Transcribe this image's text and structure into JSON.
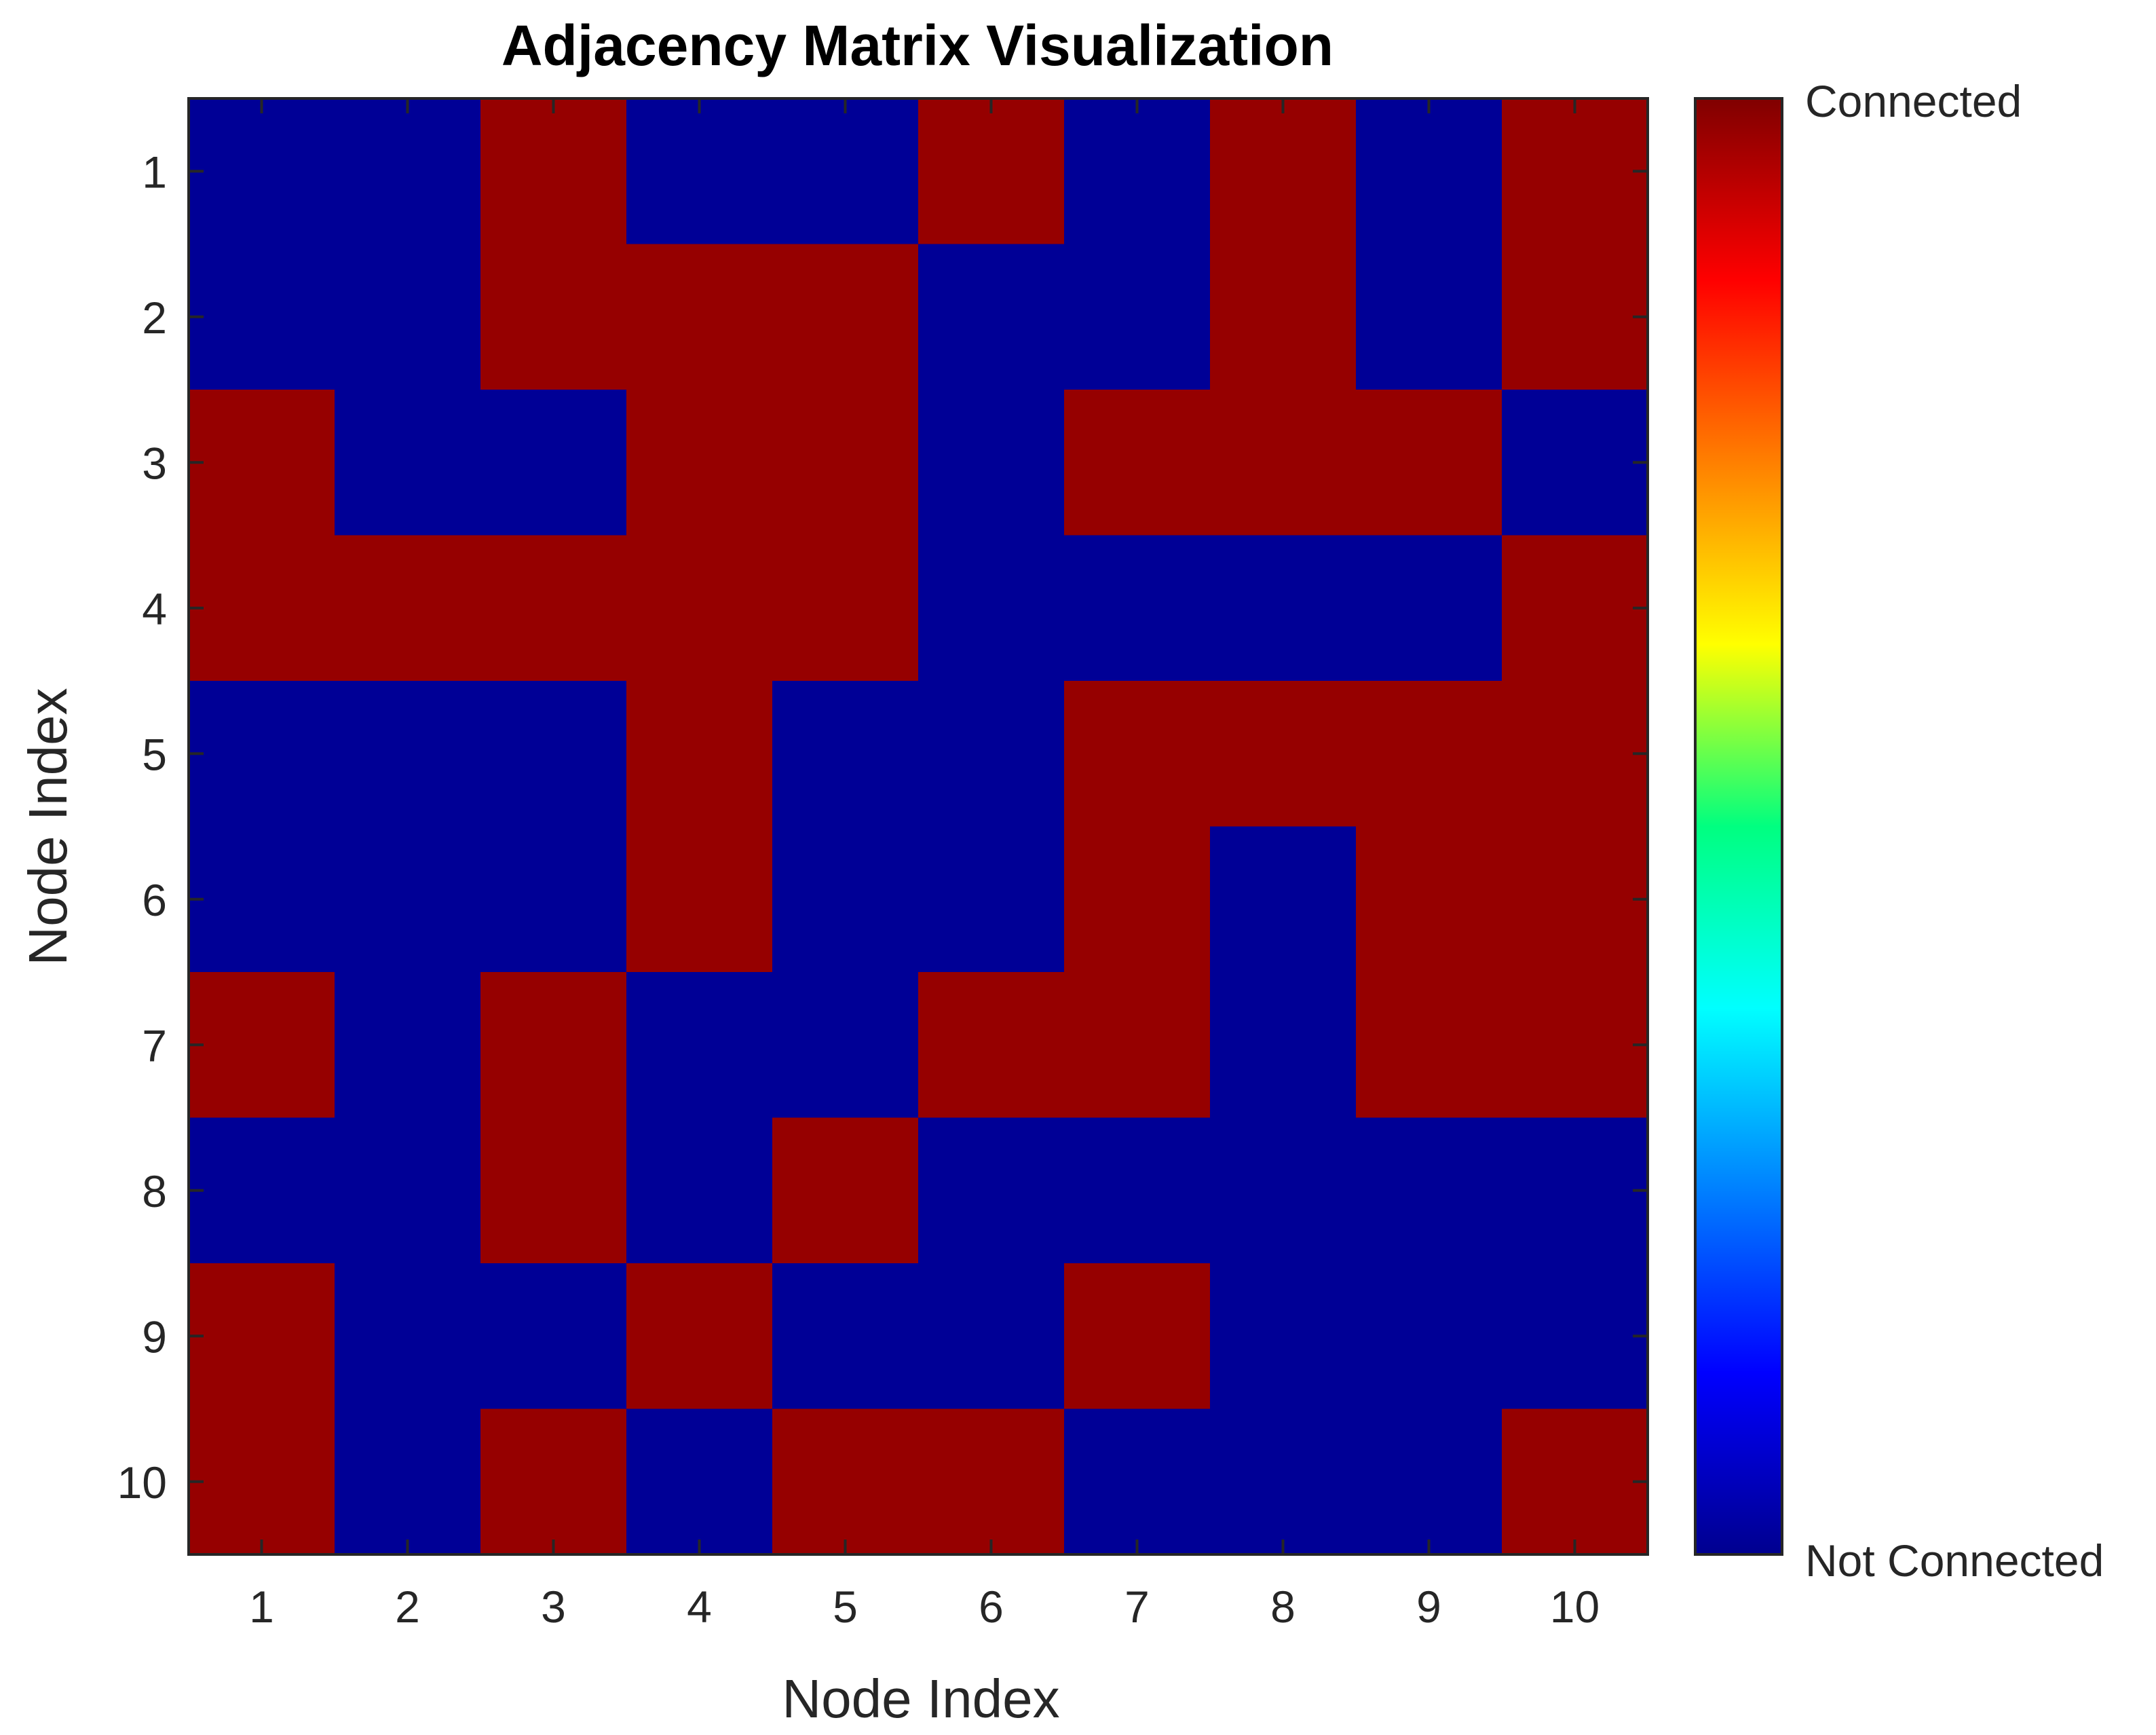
{
  "chart_data": {
    "type": "heatmap",
    "title": "Adjacency Matrix Visualization",
    "xlabel": "Node Index",
    "ylabel": "Node Index",
    "x_ticks": [
      "1",
      "2",
      "3",
      "4",
      "5",
      "6",
      "7",
      "8",
      "9",
      "10"
    ],
    "y_ticks": [
      "1",
      "2",
      "3",
      "4",
      "5",
      "6",
      "7",
      "8",
      "9",
      "10"
    ],
    "matrix": [
      [
        0,
        0,
        1,
        0,
        0,
        1,
        0,
        1,
        0,
        1
      ],
      [
        0,
        0,
        1,
        1,
        1,
        0,
        0,
        1,
        0,
        1
      ],
      [
        1,
        0,
        0,
        1,
        1,
        0,
        1,
        1,
        1,
        0
      ],
      [
        1,
        1,
        1,
        1,
        1,
        0,
        0,
        0,
        0,
        1
      ],
      [
        0,
        0,
        0,
        1,
        0,
        0,
        1,
        1,
        1,
        1
      ],
      [
        0,
        0,
        0,
        1,
        0,
        0,
        1,
        0,
        1,
        1
      ],
      [
        1,
        0,
        1,
        0,
        0,
        1,
        1,
        0,
        1,
        1
      ],
      [
        0,
        0,
        1,
        0,
        1,
        0,
        0,
        0,
        0,
        0
      ],
      [
        1,
        0,
        0,
        1,
        0,
        0,
        1,
        0,
        0,
        0
      ],
      [
        1,
        0,
        1,
        0,
        1,
        1,
        0,
        0,
        0,
        1
      ]
    ],
    "colormap": "jet",
    "colors": {
      "connected": "#960000",
      "not_connected": "#000096"
    },
    "colorbar": {
      "top_label": "Connected",
      "bottom_label": "Not Connected"
    },
    "grid": false
  }
}
